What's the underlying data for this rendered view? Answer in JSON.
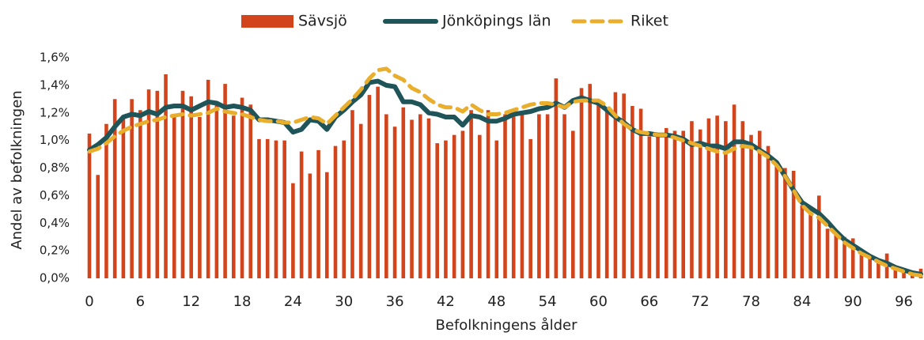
{
  "chart_data": {
    "type": "bar_line",
    "x_label": "Befolkningens ålder",
    "y_label": "Andel av befolkningen",
    "x": [
      0,
      1,
      2,
      3,
      4,
      5,
      6,
      7,
      8,
      9,
      10,
      11,
      12,
      13,
      14,
      15,
      16,
      17,
      18,
      19,
      20,
      21,
      22,
      23,
      24,
      25,
      26,
      27,
      28,
      29,
      30,
      31,
      32,
      33,
      34,
      35,
      36,
      37,
      38,
      39,
      40,
      41,
      42,
      43,
      44,
      45,
      46,
      47,
      48,
      49,
      50,
      51,
      52,
      53,
      54,
      55,
      56,
      57,
      58,
      59,
      60,
      61,
      62,
      63,
      64,
      65,
      66,
      67,
      68,
      69,
      70,
      71,
      72,
      73,
      74,
      75,
      76,
      77,
      78,
      79,
      80,
      81,
      82,
      83,
      84,
      85,
      86,
      87,
      88,
      89,
      90,
      91,
      92,
      93,
      94,
      95,
      96,
      97,
      98
    ],
    "xlim": [
      0,
      98
    ],
    "xticks": [
      0,
      6,
      12,
      18,
      24,
      30,
      36,
      42,
      48,
      54,
      60,
      66,
      72,
      78,
      84,
      90,
      96
    ],
    "ylim": [
      0,
      1.6
    ],
    "yticks": [
      {
        "value": 0,
        "label": "0,0%"
      },
      {
        "value": 0.2,
        "label": "0,2%"
      },
      {
        "value": 0.4,
        "label": "0,4%"
      },
      {
        "value": 0.6,
        "label": "0,6%"
      },
      {
        "value": 0.8,
        "label": "0,8%"
      },
      {
        "value": 1.0,
        "label": "1,0%"
      },
      {
        "value": 1.2,
        "label": "1,2%"
      },
      {
        "value": 1.4,
        "label": "1,4%"
      },
      {
        "value": 1.6,
        "label": "1,6%"
      }
    ],
    "series": [
      {
        "name": "Sävsjö",
        "kind": "bar",
        "color": "#d2451c",
        "values": [
          1.05,
          0.75,
          1.12,
          1.3,
          1.16,
          1.3,
          1.22,
          1.37,
          1.36,
          1.48,
          1.19,
          1.36,
          1.32,
          1.17,
          1.44,
          1.27,
          1.41,
          1.18,
          1.31,
          1.26,
          1.01,
          1.01,
          1.0,
          1.0,
          0.69,
          0.92,
          0.76,
          0.93,
          0.77,
          0.96,
          1.0,
          1.22,
          1.12,
          1.33,
          1.39,
          1.19,
          1.1,
          1.24,
          1.15,
          1.19,
          1.16,
          0.98,
          1.0,
          1.04,
          1.07,
          1.22,
          1.04,
          1.22,
          1.0,
          1.19,
          1.19,
          1.19,
          1.01,
          1.19,
          1.19,
          1.45,
          1.19,
          1.07,
          1.38,
          1.41,
          1.28,
          1.23,
          1.35,
          1.34,
          1.25,
          1.23,
          1.03,
          1.03,
          1.09,
          1.07,
          1.07,
          1.14,
          1.08,
          1.16,
          1.18,
          1.14,
          1.26,
          1.14,
          1.04,
          1.07,
          0.96,
          0.82,
          0.8,
          0.78,
          0.53,
          0.47,
          0.6,
          0.36,
          0.34,
          0.3,
          0.29,
          0.19,
          0.15,
          0.11,
          0.18,
          0.09,
          0.07,
          0.04,
          0.07
        ]
      },
      {
        "name": "Jönköpings län",
        "kind": "line",
        "color": "#1f5459",
        "values": [
          0.93,
          0.97,
          1.02,
          1.1,
          1.17,
          1.19,
          1.18,
          1.21,
          1.19,
          1.24,
          1.25,
          1.25,
          1.22,
          1.25,
          1.28,
          1.27,
          1.24,
          1.25,
          1.24,
          1.22,
          1.15,
          1.15,
          1.14,
          1.13,
          1.06,
          1.08,
          1.15,
          1.14,
          1.08,
          1.17,
          1.22,
          1.28,
          1.33,
          1.42,
          1.43,
          1.4,
          1.39,
          1.28,
          1.28,
          1.26,
          1.2,
          1.19,
          1.17,
          1.17,
          1.11,
          1.18,
          1.17,
          1.14,
          1.14,
          1.16,
          1.19,
          1.2,
          1.21,
          1.23,
          1.24,
          1.27,
          1.24,
          1.29,
          1.31,
          1.29,
          1.27,
          1.22,
          1.17,
          1.13,
          1.08,
          1.05,
          1.05,
          1.04,
          1.04,
          1.03,
          1.01,
          0.97,
          0.98,
          0.96,
          0.96,
          0.94,
          0.99,
          0.99,
          0.97,
          0.93,
          0.89,
          0.84,
          0.74,
          0.64,
          0.55,
          0.51,
          0.47,
          0.41,
          0.34,
          0.28,
          0.24,
          0.2,
          0.16,
          0.13,
          0.11,
          0.08,
          0.06,
          0.04,
          0.03
        ]
      },
      {
        "name": "Riket",
        "kind": "dashed",
        "color": "#e8ae2c",
        "values": [
          0.92,
          0.94,
          0.98,
          1.03,
          1.07,
          1.1,
          1.12,
          1.14,
          1.15,
          1.17,
          1.18,
          1.19,
          1.18,
          1.19,
          1.2,
          1.23,
          1.21,
          1.2,
          1.19,
          1.17,
          1.15,
          1.14,
          1.14,
          1.13,
          1.13,
          1.15,
          1.17,
          1.16,
          1.12,
          1.18,
          1.24,
          1.3,
          1.37,
          1.45,
          1.51,
          1.52,
          1.47,
          1.44,
          1.38,
          1.35,
          1.3,
          1.26,
          1.24,
          1.24,
          1.21,
          1.26,
          1.22,
          1.19,
          1.19,
          1.2,
          1.22,
          1.24,
          1.26,
          1.27,
          1.27,
          1.26,
          1.24,
          1.28,
          1.29,
          1.29,
          1.29,
          1.25,
          1.18,
          1.12,
          1.08,
          1.06,
          1.05,
          1.04,
          1.04,
          1.02,
          1.0,
          0.98,
          0.96,
          0.94,
          0.92,
          0.91,
          0.94,
          0.96,
          0.95,
          0.92,
          0.88,
          0.82,
          0.74,
          0.64,
          0.53,
          0.47,
          0.44,
          0.38,
          0.32,
          0.26,
          0.22,
          0.18,
          0.15,
          0.12,
          0.09,
          0.07,
          0.05,
          0.03,
          0.02
        ]
      }
    ]
  }
}
